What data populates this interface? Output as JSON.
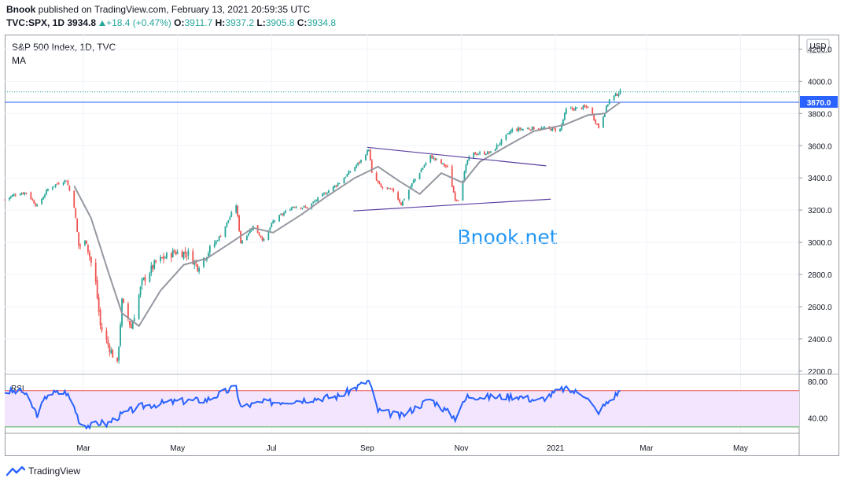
{
  "header": {
    "publisher": "Bnook",
    "published_text": " published on TradingView.com, February 13, 2021 20:59:35 UTC",
    "symbol": "TVC:SPX, 1D",
    "last": "3934.8",
    "change": "+18.4 (+0.47%)",
    "o_label": "O:",
    "o": "3911.7",
    "h_label": "H:",
    "h": "3937.2",
    "l_label": "L:",
    "l": "3905.8",
    "c_label": "C:",
    "c": "3934.8"
  },
  "pane": {
    "title": "S&P 500 Index, 1D, TVC",
    "indicator": "MA",
    "currency_button": "USD",
    "price_marker": "3870.0",
    "watermark": "Bnook.net",
    "rsi_label": "RSI"
  },
  "footer": {
    "brand": "TradingView"
  },
  "colors": {
    "up": "#26a69a",
    "down": "#ef5350",
    "ma": "#9598a1",
    "rsi": "#2962ff",
    "rsi_band": "#f3e5fd",
    "trendline": "#5b3fa1",
    "marker": "#2962ff",
    "watermark": "#2196f3"
  },
  "chart_data": [
    {
      "type": "candlestick",
      "title": "S&P 500 Index, 1D, TVC",
      "x_ticks": [
        "Mar",
        "May",
        "Jul",
        "Sep",
        "Nov",
        "2021",
        "Mar",
        "May"
      ],
      "x_tick_dates": [
        "2020-03-01",
        "2020-05-01",
        "2020-07-01",
        "2020-09-01",
        "2020-11-01",
        "2021-01-01",
        "2021-03-01",
        "2021-05-01"
      ],
      "y_ticks": [
        "4200.0",
        "4000.0",
        "3800.0",
        "3600.0",
        "3400.0",
        "3200.0",
        "3000.0",
        "2800.0",
        "2600.0",
        "2400.0",
        "2200.0"
      ],
      "ylim": [
        2180,
        4290
      ],
      "x_range": [
        "2020-01-10",
        "2021-06-08"
      ],
      "last_price": 3934.8,
      "horizontal_line": 3870.0,
      "close_series": {
        "name": "S&P 500 Index",
        "points": [
          [
            "2020-01-10",
            3265
          ],
          [
            "2020-01-17",
            3300
          ],
          [
            "2020-01-24",
            3310
          ],
          [
            "2020-01-31",
            3225
          ],
          [
            "2020-02-07",
            3330
          ],
          [
            "2020-02-14",
            3370
          ],
          [
            "2020-02-19",
            3386
          ],
          [
            "2020-02-24",
            3225
          ],
          [
            "2020-02-27",
            2980
          ],
          [
            "2020-03-03",
            3000
          ],
          [
            "2020-03-09",
            2745
          ],
          [
            "2020-03-12",
            2480
          ],
          [
            "2020-03-16",
            2385
          ],
          [
            "2020-03-23",
            2237
          ],
          [
            "2020-03-26",
            2630
          ],
          [
            "2020-04-01",
            2470
          ],
          [
            "2020-04-08",
            2750
          ],
          [
            "2020-04-17",
            2875
          ],
          [
            "2020-04-29",
            2940
          ],
          [
            "2020-05-08",
            2930
          ],
          [
            "2020-05-14",
            2850
          ],
          [
            "2020-05-22",
            2955
          ],
          [
            "2020-05-29",
            3045
          ],
          [
            "2020-06-08",
            3232
          ],
          [
            "2020-06-11",
            3000
          ],
          [
            "2020-06-19",
            3100
          ],
          [
            "2020-06-26",
            3010
          ],
          [
            "2020-07-02",
            3130
          ],
          [
            "2020-07-15",
            3225
          ],
          [
            "2020-07-24",
            3215
          ],
          [
            "2020-07-31",
            3270
          ],
          [
            "2020-08-14",
            3372
          ],
          [
            "2020-08-28",
            3508
          ],
          [
            "2020-09-02",
            3580
          ],
          [
            "2020-09-04",
            3426
          ],
          [
            "2020-09-10",
            3340
          ],
          [
            "2020-09-18",
            3320
          ],
          [
            "2020-09-23",
            3237
          ],
          [
            "2020-10-01",
            3380
          ],
          [
            "2020-10-12",
            3535
          ],
          [
            "2020-10-23",
            3465
          ],
          [
            "2020-10-28",
            3271
          ],
          [
            "2020-10-30",
            3270
          ],
          [
            "2020-11-05",
            3510
          ],
          [
            "2020-11-09",
            3550
          ],
          [
            "2020-11-20",
            3557
          ],
          [
            "2020-12-04",
            3699
          ],
          [
            "2020-12-18",
            3709
          ],
          [
            "2021-01-04",
            3700
          ],
          [
            "2021-01-08",
            3824
          ],
          [
            "2021-01-22",
            3841
          ],
          [
            "2021-01-27",
            3750
          ],
          [
            "2021-01-29",
            3714
          ],
          [
            "2021-02-05",
            3886
          ],
          [
            "2021-02-12",
            3934.8
          ]
        ]
      },
      "ma_series": {
        "name": "MA",
        "points": [
          [
            "2020-02-24",
            3350
          ],
          [
            "2020-03-06",
            3150
          ],
          [
            "2020-03-17",
            2820
          ],
          [
            "2020-03-26",
            2560
          ],
          [
            "2020-04-06",
            2480
          ],
          [
            "2020-04-20",
            2700
          ],
          [
            "2020-05-05",
            2860
          ],
          [
            "2020-05-20",
            2900
          ],
          [
            "2020-06-05",
            3000
          ],
          [
            "2020-06-19",
            3090
          ],
          [
            "2020-07-02",
            3060
          ],
          [
            "2020-07-20",
            3170
          ],
          [
            "2020-08-05",
            3280
          ],
          [
            "2020-08-24",
            3400
          ],
          [
            "2020-09-08",
            3470
          ],
          [
            "2020-09-21",
            3385
          ],
          [
            "2020-10-05",
            3300
          ],
          [
            "2020-10-19",
            3430
          ],
          [
            "2020-11-02",
            3370
          ],
          [
            "2020-11-13",
            3500
          ],
          [
            "2020-12-01",
            3600
          ],
          [
            "2020-12-18",
            3690
          ],
          [
            "2021-01-07",
            3730
          ],
          [
            "2021-01-22",
            3790
          ],
          [
            "2021-02-02",
            3800
          ],
          [
            "2021-02-12",
            3870
          ]
        ]
      },
      "trendlines": [
        {
          "from": [
            "2020-09-01",
            3590
          ],
          "to": [
            "2020-12-26",
            3475
          ]
        },
        {
          "from": [
            "2020-08-23",
            3195
          ],
          "to": [
            "2020-12-29",
            3268
          ]
        }
      ]
    },
    {
      "type": "line",
      "name": "RSI",
      "y_ticks": [
        "80.00",
        "40.00"
      ],
      "ylim": [
        23,
        88
      ],
      "band": [
        30,
        70
      ],
      "points": [
        [
          "2020-01-10",
          69
        ],
        [
          "2020-01-22",
          69
        ],
        [
          "2020-01-31",
          44
        ],
        [
          "2020-02-07",
          67
        ],
        [
          "2020-02-19",
          68
        ],
        [
          "2020-02-24",
          52
        ],
        [
          "2020-02-28",
          34
        ],
        [
          "2020-03-06",
          31
        ],
        [
          "2020-03-12",
          35
        ],
        [
          "2020-03-16",
          33
        ],
        [
          "2020-03-23",
          41
        ],
        [
          "2020-03-30",
          47
        ],
        [
          "2020-04-08",
          53
        ],
        [
          "2020-04-30",
          58
        ],
        [
          "2020-05-20",
          60
        ],
        [
          "2020-06-08",
          74
        ],
        [
          "2020-06-11",
          52
        ],
        [
          "2020-06-26",
          57
        ],
        [
          "2020-07-15",
          59
        ],
        [
          "2020-08-14",
          64
        ],
        [
          "2020-09-02",
          81
        ],
        [
          "2020-09-08",
          48
        ],
        [
          "2020-09-23",
          42
        ],
        [
          "2020-10-12",
          61
        ],
        [
          "2020-10-28",
          40
        ],
        [
          "2020-11-05",
          64
        ],
        [
          "2020-11-20",
          63
        ],
        [
          "2020-12-08",
          64
        ],
        [
          "2020-12-21",
          59
        ],
        [
          "2021-01-06",
          72
        ],
        [
          "2021-01-20",
          66
        ],
        [
          "2021-01-28",
          46
        ],
        [
          "2021-02-12",
          70
        ]
      ]
    }
  ]
}
